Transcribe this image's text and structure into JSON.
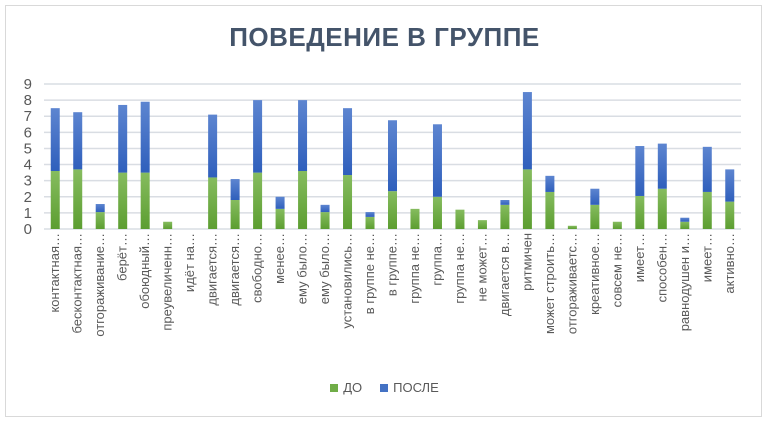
{
  "chart_data": {
    "type": "bar",
    "stacked": true,
    "title": "ПОВЕДЕНИЕ В ГРУППЕ",
    "xlabel": "",
    "ylabel": "",
    "ylim": [
      0,
      9
    ],
    "yticks": [
      0,
      1,
      2,
      3,
      4,
      5,
      6,
      7,
      8,
      9
    ],
    "grid": true,
    "legend_position": "bottom",
    "categories": [
      "контактная…",
      "бесконтактная…",
      "отгораживание…",
      "берёт…",
      "обоюдный…",
      "преувеличенн…",
      "идёт на…",
      "двигается…",
      "двигается…",
      "свободно…",
      "менее…",
      "ему было…",
      "ему было…",
      "установились…",
      "в группе не…",
      "в группе…",
      "группа не…",
      "группа…",
      "группа не…",
      "не может…",
      "двигается в…",
      "ритмичен",
      "может строить…",
      "отгораживаетс…",
      "креативное…",
      "совсем не…",
      "имеет…",
      "способен…",
      "равнодушен и…",
      "имеет…",
      "активно…"
    ],
    "series": [
      {
        "name": "ДО",
        "color": "#70ad47",
        "values": [
          3.6,
          3.7,
          1.05,
          3.5,
          3.5,
          0.45,
          0,
          3.2,
          1.8,
          3.5,
          1.25,
          3.6,
          1.05,
          3.35,
          0.75,
          2.35,
          1.25,
          2.0,
          1.2,
          0.55,
          1.5,
          3.7,
          2.3,
          0.2,
          1.5,
          0.45,
          2.05,
          2.5,
          0.45,
          2.3,
          1.7
        ]
      },
      {
        "name": "ПОСЛЕ",
        "color": "#4472c4",
        "values": [
          3.9,
          3.55,
          0.5,
          4.2,
          4.4,
          0,
          0,
          3.9,
          1.3,
          4.5,
          0.75,
          4.4,
          0.45,
          4.15,
          0.3,
          4.4,
          0,
          4.5,
          0,
          0,
          0.3,
          4.8,
          1.0,
          0,
          1.0,
          0,
          3.1,
          2.8,
          0.25,
          2.8,
          2.0
        ]
      }
    ]
  }
}
